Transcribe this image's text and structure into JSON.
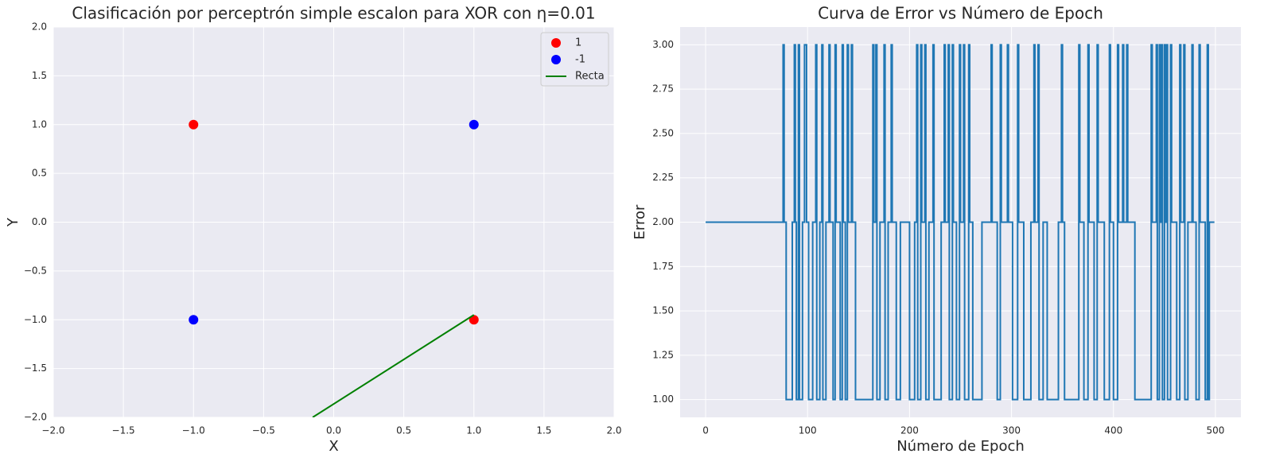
{
  "chart_data": [
    {
      "type": "scatter",
      "title": "Clasificación por perceptrón simple escalon para XOR con η=0.01",
      "xlabel": "X",
      "ylabel": "Y",
      "xlim": [
        -2,
        2
      ],
      "ylim": [
        -2,
        2
      ],
      "xticks": [
        {
          "value": -2,
          "label": "−2.0"
        },
        {
          "value": -1.5,
          "label": "−1.5"
        },
        {
          "value": -1,
          "label": "−1.0"
        },
        {
          "value": -0.5,
          "label": "−0.5"
        },
        {
          "value": 0,
          "label": "0.0"
        },
        {
          "value": 0.5,
          "label": "0.5"
        },
        {
          "value": 1,
          "label": "1.0"
        },
        {
          "value": 1.5,
          "label": "1.5"
        },
        {
          "value": 2,
          "label": "2.0"
        }
      ],
      "yticks": [
        {
          "value": -2,
          "label": "−2.0"
        },
        {
          "value": -1.5,
          "label": "−1.5"
        },
        {
          "value": -1,
          "label": "−1.0"
        },
        {
          "value": -0.5,
          "label": "−0.5"
        },
        {
          "value": 0,
          "label": "0.0"
        },
        {
          "value": 0.5,
          "label": "0.5"
        },
        {
          "value": 1,
          "label": "1.0"
        },
        {
          "value": 1.5,
          "label": "1.5"
        },
        {
          "value": 2,
          "label": "2.0"
        }
      ],
      "grid": true,
      "legend": "upper right",
      "series": [
        {
          "name": "1",
          "color": "#ff0000",
          "x": [
            -1,
            1
          ],
          "values": [
            1,
            -1
          ]
        },
        {
          "name": "-1",
          "color": "#0000ff",
          "x": [
            1,
            -1
          ],
          "values": [
            1,
            -1
          ]
        },
        {
          "name": "Recta",
          "type": "line",
          "color": "#008000",
          "x": [
            -0.15,
            1
          ],
          "values": [
            -2,
            -0.95
          ]
        }
      ]
    },
    {
      "type": "line",
      "title": "Curva de Error vs Número de Epoch",
      "xlabel": "Número de Epoch",
      "ylabel": "Error",
      "xlim": [
        -25,
        525
      ],
      "ylim": [
        0.9,
        3.1
      ],
      "xticks": [
        0,
        100,
        200,
        300,
        400,
        500
      ],
      "yticks": [
        {
          "value": 1,
          "label": "1.00"
        },
        {
          "value": 1.25,
          "label": "1.25"
        },
        {
          "value": 1.5,
          "label": "1.50"
        },
        {
          "value": 1.75,
          "label": "1.75"
        },
        {
          "value": 2,
          "label": "2.00"
        },
        {
          "value": 2.25,
          "label": "2.25"
        },
        {
          "value": 2.5,
          "label": "2.50"
        },
        {
          "value": 2.75,
          "label": "2.75"
        },
        {
          "value": 3,
          "label": "3.00"
        }
      ],
      "grid": true,
      "drawstyle": "steps-post",
      "series": [
        {
          "color": "#1f77b4",
          "x": [
            0,
            76,
            77,
            79,
            85,
            87,
            88,
            89,
            91,
            92,
            95,
            97,
            99,
            101,
            105,
            108,
            109,
            112,
            114,
            115,
            118,
            121,
            122,
            125,
            127,
            128,
            132,
            134,
            135,
            137,
            139,
            140,
            143,
            144,
            147,
            164,
            165,
            167,
            168,
            171,
            175,
            176,
            179,
            182,
            183,
            187,
            191,
            200,
            205,
            207,
            208,
            211,
            212,
            215,
            216,
            219,
            223,
            224,
            231,
            234,
            235,
            238,
            239,
            242,
            243,
            246,
            249,
            250,
            253,
            254,
            258,
            259,
            262,
            271,
            280,
            281,
            286,
            289,
            290,
            296,
            297,
            301,
            306,
            307,
            312,
            319,
            322,
            323,
            326,
            327,
            331,
            335,
            346,
            349,
            350,
            352,
            366,
            367,
            371,
            375,
            376,
            381,
            384,
            385,
            391,
            396,
            397,
            400,
            404,
            405,
            409,
            410,
            413,
            414,
            421,
            437,
            438,
            442,
            443,
            445,
            446,
            447,
            448,
            450,
            451,
            452,
            453,
            456,
            457,
            462,
            465,
            466,
            469,
            470,
            473,
            477,
            478,
            481,
            484,
            485,
            490,
            492,
            493,
            494,
            499
          ],
          "values": [
            2,
            3,
            2,
            1,
            2,
            3,
            2,
            1,
            3,
            1,
            2,
            3,
            2,
            1,
            2,
            3,
            1,
            2,
            3,
            1,
            2,
            3,
            2,
            1,
            3,
            2,
            1,
            3,
            2,
            1,
            3,
            2,
            3,
            2,
            1,
            3,
            2,
            3,
            1,
            2,
            3,
            1,
            2,
            3,
            2,
            1,
            2,
            1,
            2,
            3,
            1,
            3,
            2,
            3,
            1,
            2,
            3,
            1,
            2,
            3,
            2,
            3,
            1,
            3,
            2,
            1,
            3,
            2,
            3,
            1,
            3,
            2,
            1,
            2,
            3,
            2,
            1,
            3,
            2,
            3,
            2,
            1,
            3,
            2,
            1,
            2,
            3,
            2,
            3,
            1,
            2,
            1,
            2,
            3,
            2,
            1,
            3,
            2,
            1,
            3,
            2,
            1,
            3,
            2,
            1,
            3,
            2,
            1,
            3,
            2,
            3,
            2,
            3,
            2,
            1,
            3,
            2,
            3,
            1,
            3,
            2,
            3,
            1,
            3,
            2,
            3,
            1,
            3,
            2,
            1,
            3,
            2,
            3,
            1,
            2,
            3,
            2,
            1,
            3,
            2,
            1,
            3,
            1,
            2,
            2
          ]
        }
      ]
    }
  ]
}
